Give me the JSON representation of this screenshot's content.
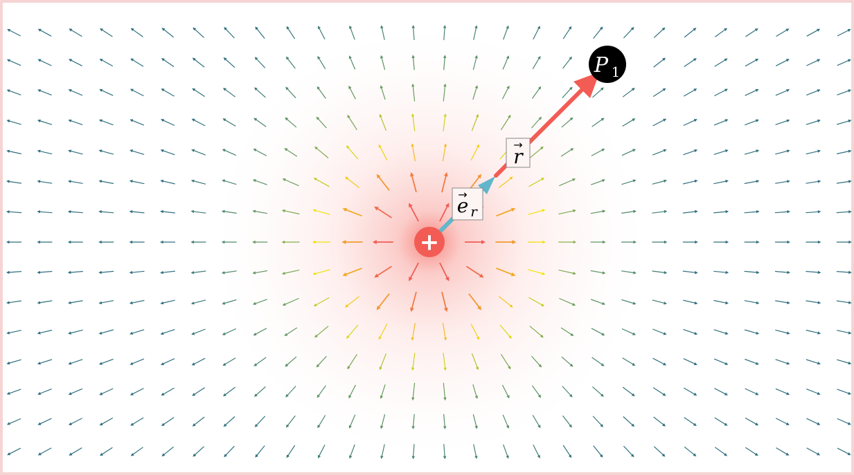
{
  "diagram": {
    "charge": {
      "sign": "+",
      "color": "#f25c54"
    },
    "labels": {
      "position_vector": "r",
      "unit_vector_base": "e",
      "unit_vector_sub": "r",
      "point_base": "P",
      "point_sub": "1"
    },
    "colors": {
      "background": "#fdf1f1",
      "vector_r": "#f25c54",
      "vector_er": "#62b6cb",
      "point_fill": "#000000",
      "field_strong": "#f25c54",
      "field_medium": "#f3e600",
      "field_weak": "#2f6f7e"
    }
  }
}
